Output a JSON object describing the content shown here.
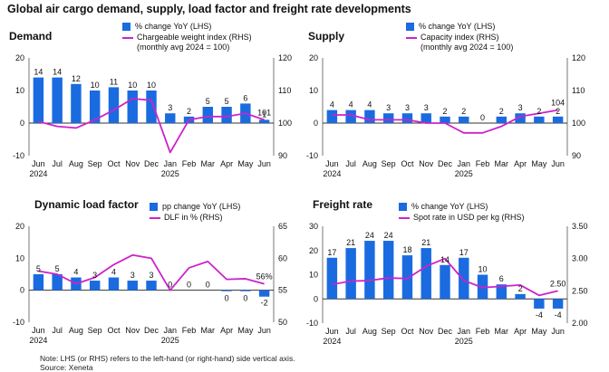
{
  "title": "Global air cargo demand, supply, load factor and freight rate developments",
  "colors": {
    "bar": "#1a6be0",
    "line": "#cc22cc",
    "axis": "#444444"
  },
  "footnote": {
    "note": "Note: LHS (or RHS) refers to the left-hand (or right-hand) side vertical axis.",
    "source": "Source: Xeneta"
  },
  "chart_data": [
    {
      "panel": "Demand",
      "type": "bar+line",
      "title": "Demand",
      "legend": {
        "bar": "% change YoY (LHS)",
        "line1": "Chargeable weight index (RHS)",
        "line2": "(monthly avg 2024 = 100)"
      },
      "categories": [
        "Jun",
        "Jul",
        "Aug",
        "Sep",
        "Oct",
        "Nov",
        "Dec",
        "Jan",
        "Feb",
        "Mar",
        "Apr",
        "May",
        "Jun"
      ],
      "year_labels": [
        "2024",
        "2025"
      ],
      "bar_values": [
        14,
        14,
        12,
        10,
        11,
        10,
        10,
        3,
        2,
        5,
        5,
        6,
        1
      ],
      "bar_labels": [
        "14",
        "14",
        "12",
        "10",
        "11",
        "10",
        "10",
        "3",
        "2",
        "5",
        "5",
        "6",
        "1"
      ],
      "line_values": [
        100.5,
        99,
        98.5,
        101,
        104,
        107.5,
        107,
        91,
        101,
        102,
        102,
        103,
        101
      ],
      "end_label": "101",
      "left_axis": {
        "min": -10,
        "max": 20,
        "ticks": [
          -10,
          0,
          10,
          20
        ]
      },
      "right_axis": {
        "min": 90,
        "max": 120,
        "ticks": [
          90,
          100,
          110,
          120
        ]
      }
    },
    {
      "panel": "Supply",
      "type": "bar+line",
      "title": "Supply",
      "legend": {
        "bar": "% change YoY (LHS)",
        "line1": "Capacity index (RHS)",
        "line2": "(monthly avg 2024 = 100)"
      },
      "categories": [
        "Jun",
        "Jul",
        "Aug",
        "Sep",
        "Oct",
        "Nov",
        "Dec",
        "Jan",
        "Feb",
        "Mar",
        "Apr",
        "May",
        "Jun"
      ],
      "year_labels": [
        "2024",
        "2025"
      ],
      "bar_values": [
        4,
        4,
        4,
        3,
        3,
        3,
        2,
        2,
        0,
        2,
        3,
        2,
        2
      ],
      "bar_labels": [
        "4",
        "4",
        "4",
        "3",
        "3",
        "3",
        "2",
        "2",
        "0",
        "2",
        "3",
        "2",
        "2"
      ],
      "line_values": [
        102.5,
        102.5,
        101,
        101,
        101,
        100,
        100,
        97,
        97,
        99,
        102,
        103,
        104
      ],
      "end_label": "104",
      "left_axis": {
        "min": -10,
        "max": 20,
        "ticks": [
          -10,
          0,
          10,
          20
        ]
      },
      "right_axis": {
        "min": 90,
        "max": 120,
        "ticks": [
          90,
          100,
          110,
          120
        ]
      }
    },
    {
      "panel": "Dynamic load factor",
      "type": "bar+line",
      "title": "Dynamic load factor",
      "legend": {
        "bar": "pp change YoY (LHS)",
        "line1": "DLF in % (RHS)",
        "line2": ""
      },
      "categories": [
        "Jun",
        "Jul",
        "Aug",
        "Sep",
        "Oct",
        "Nov",
        "Dec",
        "Jan",
        "Feb",
        "Mar",
        "Apr",
        "May",
        "Jun"
      ],
      "year_labels": [
        "2024",
        "2025"
      ],
      "bar_values": [
        5,
        5,
        4,
        3,
        4,
        3,
        3,
        0,
        0,
        0,
        -0.3,
        -0.3,
        -2
      ],
      "bar_labels": [
        "5",
        "5",
        "4",
        "3",
        "4",
        "3",
        "3",
        "0",
        "0",
        "0",
        "0",
        "0",
        "-2"
      ],
      "line_values": [
        58,
        57.5,
        56,
        57,
        59,
        60.5,
        60,
        55,
        58.5,
        59.5,
        56.7,
        56.8,
        56
      ],
      "end_label": "56%",
      "left_axis": {
        "min": -10,
        "max": 20,
        "ticks": [
          -10,
          0,
          10,
          20
        ]
      },
      "right_axis": {
        "min": 50,
        "max": 65,
        "ticks": [
          50,
          55,
          60,
          65
        ]
      }
    },
    {
      "panel": "Freight rate",
      "type": "bar+line",
      "title": "Freight rate",
      "legend": {
        "bar": "% change YoY (LHS)",
        "line1": "Spot rate in USD per kg (RHS)",
        "line2": ""
      },
      "categories": [
        "Jun",
        "Jul",
        "Aug",
        "Sep",
        "Oct",
        "Nov",
        "Dec",
        "Jan",
        "Feb",
        "Mar",
        "Apr",
        "May",
        "Jun"
      ],
      "year_labels": [
        "2024",
        "2025"
      ],
      "bar_values": [
        17,
        21,
        24,
        24,
        18,
        21,
        14,
        17,
        10,
        6,
        2,
        -4,
        -4
      ],
      "bar_labels": [
        "17",
        "21",
        "24",
        "24",
        "18",
        "21",
        "14",
        "17",
        "10",
        "6",
        "2",
        "-4",
        "-4"
      ],
      "line_values": [
        2.6,
        2.65,
        2.66,
        2.7,
        2.69,
        2.88,
        3.0,
        2.66,
        2.55,
        2.57,
        2.59,
        2.43,
        2.5
      ],
      "end_label": "2.50",
      "left_axis": {
        "min": -10,
        "max": 30,
        "ticks": [
          -10,
          0,
          10,
          20,
          30
        ]
      },
      "right_axis": {
        "min": 2.0,
        "max": 3.5,
        "ticks": [
          "2.00",
          "2.50",
          "3.00",
          "3.50"
        ]
      }
    }
  ]
}
